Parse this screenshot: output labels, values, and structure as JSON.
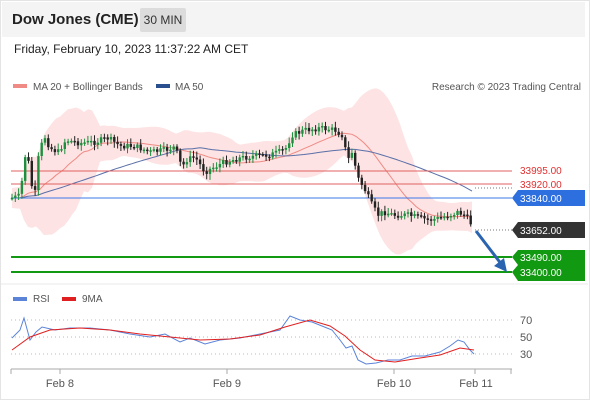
{
  "header": {
    "title": "Dow Jones (CME)",
    "timeframe": "30 MIN"
  },
  "datetime": "Friday, February 10, 2023 11:37:22 AM CET",
  "legend": {
    "bollinger": {
      "label": "MA 20 + Bollinger Bands",
      "color": "#f08a84"
    },
    "ma50": {
      "label": "MA 50",
      "color": "#2a4f8f"
    },
    "credit": "Research © 2023 Trading Central"
  },
  "rsi_legend": {
    "rsi": {
      "label": "RSI",
      "color": "#5b83d8"
    },
    "ma9": {
      "label": "9MA",
      "color": "#e02020"
    }
  },
  "chart_data": {
    "type": "candlestick",
    "x_labels": [
      "Feb 8",
      "Feb 9",
      "Feb 10",
      "Feb 11"
    ],
    "price_levels": [
      {
        "value": "33995.00",
        "kind": "resistance",
        "color": "#e05555"
      },
      {
        "value": "33920.00",
        "kind": "resistance",
        "color": "#e05555"
      },
      {
        "value": "33840.00",
        "kind": "pivot",
        "color": "#2e6fe0"
      },
      {
        "value": "33652.00",
        "kind": "last",
        "color": "#333333"
      },
      {
        "value": "33490.00",
        "kind": "support",
        "color": "#119911"
      },
      {
        "value": "33400.00",
        "kind": "support",
        "color": "#119911"
      }
    ],
    "forecast_arrow": {
      "from": 33652,
      "to": 33420,
      "direction": "down"
    },
    "rsi": {
      "levels": [
        "70",
        "50",
        "30"
      ]
    }
  }
}
